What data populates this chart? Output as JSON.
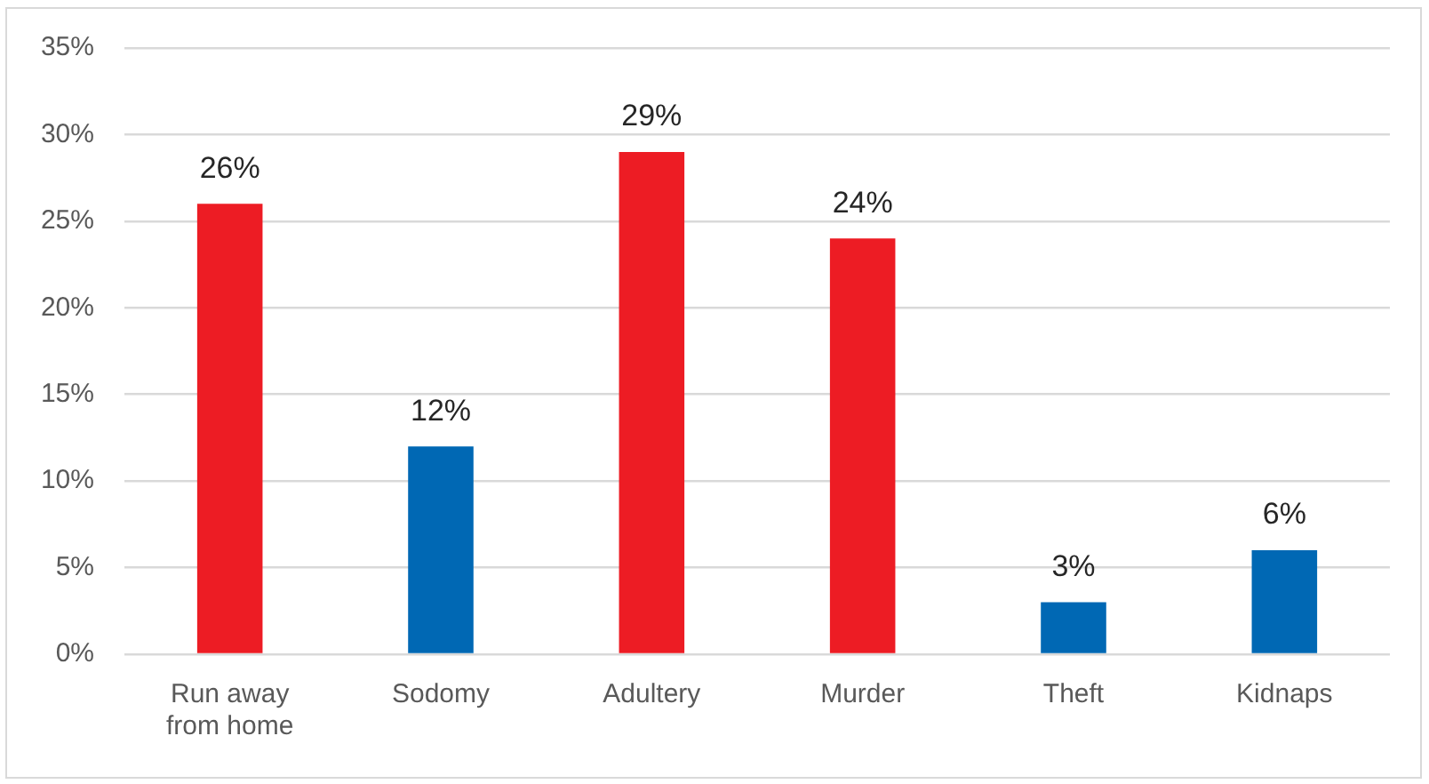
{
  "chart_data": {
    "type": "bar",
    "categories": [
      "Run away from home",
      "Sodomy",
      "Adultery",
      "Murder",
      "Theft",
      "Kidnaps"
    ],
    "values": [
      26,
      12,
      29,
      24,
      3,
      6
    ],
    "colors": [
      "#ed1c24",
      "#0068b4",
      "#ed1c24",
      "#ed1c24",
      "#0068b4",
      "#0068b4"
    ],
    "value_labels": [
      "26%",
      "12%",
      "29%",
      "24%",
      "3%",
      "6%"
    ],
    "ylim": [
      0,
      35
    ],
    "yticks": [
      {
        "value": 0,
        "label": "0%"
      },
      {
        "value": 5,
        "label": "5%"
      },
      {
        "value": 10,
        "label": "10%"
      },
      {
        "value": 15,
        "label": "15%"
      },
      {
        "value": 20,
        "label": "20%"
      },
      {
        "value": 25,
        "label": "25%"
      },
      {
        "value": 30,
        "label": "30%"
      },
      {
        "value": 35,
        "label": "35%"
      }
    ],
    "grid": "y"
  }
}
